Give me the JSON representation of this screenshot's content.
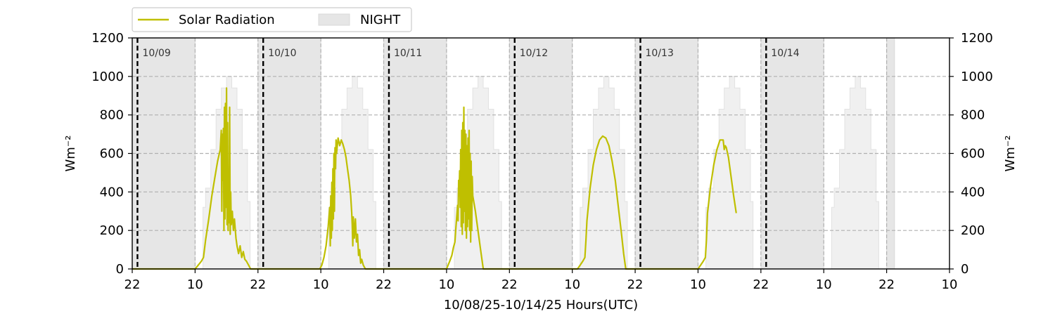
{
  "chart_data": {
    "type": "line",
    "xlabel": "10/08/25-10/14/25  Hours(UTC)",
    "ylabel_left": "Wm⁻²",
    "ylabel_right": "Wm⁻²",
    "ylim": [
      0,
      1200
    ],
    "yticks": [
      "0",
      "200",
      "400",
      "600",
      "800",
      "1000",
      "1200"
    ],
    "xlim_hours": [
      0,
      156
    ],
    "xticks": [
      {
        "hour": 0,
        "label": "22"
      },
      {
        "hour": 12,
        "label": "10"
      },
      {
        "hour": 24,
        "label": "22"
      },
      {
        "hour": 36,
        "label": "10"
      },
      {
        "hour": 48,
        "label": "22"
      },
      {
        "hour": 60,
        "label": "10"
      },
      {
        "hour": 72,
        "label": "22"
      },
      {
        "hour": 84,
        "label": "10"
      },
      {
        "hour": 96,
        "label": "22"
      },
      {
        "hour": 108,
        "label": "10"
      },
      {
        "hour": 120,
        "label": "22"
      },
      {
        "hour": 132,
        "label": "10"
      },
      {
        "hour": 144,
        "label": "22"
      },
      {
        "hour": 156,
        "label": "10"
      }
    ],
    "grid": "dashed",
    "legend_position": "top-left, above plot",
    "legend": [
      {
        "label": "Solar Radiation",
        "kind": "line",
        "color": "#bfbf00"
      },
      {
        "label": "NIGHT",
        "kind": "patch",
        "color": "#e6e6e6"
      }
    ],
    "night_periods": [
      [
        0,
        12
      ],
      [
        24,
        36
      ],
      [
        48,
        60
      ],
      [
        72,
        84
      ],
      [
        96,
        108
      ],
      [
        120,
        132
      ],
      [
        144,
        145.5
      ]
    ],
    "clear_sky_daily": {
      "day_offset_hours": [
        13.5,
        14,
        15,
        16,
        17,
        18,
        19,
        20,
        21,
        22,
        22.5
      ],
      "values": [
        320,
        420,
        620,
        830,
        940,
        1000,
        940,
        830,
        620,
        350,
        0
      ]
    },
    "day_separators": [
      {
        "hour": 1,
        "label": "10/09"
      },
      {
        "hour": 25,
        "label": "10/10"
      },
      {
        "hour": 49,
        "label": "10/11"
      },
      {
        "hour": 73,
        "label": "10/12"
      },
      {
        "hour": 97,
        "label": "10/13"
      },
      {
        "hour": 121,
        "label": "10/14"
      }
    ],
    "series": [
      {
        "name": "Solar Radiation",
        "color": "#bfbf00",
        "points": [
          [
            0,
            0
          ],
          [
            12,
            0
          ],
          [
            12.6,
            20
          ],
          [
            13.2,
            40
          ],
          [
            13.6,
            60
          ],
          [
            14,
            150
          ],
          [
            14.6,
            260
          ],
          [
            15.2,
            380
          ],
          [
            15.8,
            480
          ],
          [
            16.3,
            560
          ],
          [
            16.8,
            620
          ],
          [
            17,
            720
          ],
          [
            17.1,
            300
          ],
          [
            17.2,
            700
          ],
          [
            17.3,
            460
          ],
          [
            17.4,
            730
          ],
          [
            17.5,
            200
          ],
          [
            17.6,
            840
          ],
          [
            17.7,
            260
          ],
          [
            17.8,
            860
          ],
          [
            17.9,
            320
          ],
          [
            18,
            940
          ],
          [
            18.1,
            230
          ],
          [
            18.2,
            760
          ],
          [
            18.3,
            200
          ],
          [
            18.4,
            500
          ],
          [
            18.5,
            240
          ],
          [
            18.6,
            840
          ],
          [
            18.7,
            180
          ],
          [
            18.8,
            400
          ],
          [
            18.9,
            230
          ],
          [
            19.1,
            300
          ],
          [
            19.3,
            200
          ],
          [
            19.5,
            260
          ],
          [
            19.8,
            160
          ],
          [
            20,
            120
          ],
          [
            20.3,
            80
          ],
          [
            20.6,
            120
          ],
          [
            20.9,
            60
          ],
          [
            21.2,
            90
          ],
          [
            21.5,
            50
          ],
          [
            21.8,
            40
          ],
          [
            22.2,
            20
          ],
          [
            22.6,
            0
          ],
          [
            24,
            0
          ],
          [
            35.8,
            0
          ],
          [
            36.2,
            20
          ],
          [
            36.6,
            60
          ],
          [
            37,
            120
          ],
          [
            37.4,
            220
          ],
          [
            37.7,
            320
          ],
          [
            37.8,
            120
          ],
          [
            37.9,
            380
          ],
          [
            38,
            160
          ],
          [
            38.1,
            450
          ],
          [
            38.2,
            200
          ],
          [
            38.3,
            520
          ],
          [
            38.4,
            260
          ],
          [
            38.5,
            600
          ],
          [
            38.6,
            300
          ],
          [
            38.7,
            630
          ],
          [
            38.8,
            520
          ],
          [
            38.9,
            670
          ],
          [
            39,
            600
          ],
          [
            39.3,
            680
          ],
          [
            39.6,
            640
          ],
          [
            39.9,
            670
          ],
          [
            40.2,
            650
          ],
          [
            40.5,
            620
          ],
          [
            40.8,
            580
          ],
          [
            41.1,
            520
          ],
          [
            41.4,
            460
          ],
          [
            41.7,
            380
          ],
          [
            41.9,
            290
          ],
          [
            42,
            230
          ],
          [
            42.1,
            120
          ],
          [
            42.2,
            270
          ],
          [
            42.4,
            160
          ],
          [
            42.6,
            260
          ],
          [
            42.8,
            140
          ],
          [
            43,
            180
          ],
          [
            43.2,
            70
          ],
          [
            43.4,
            100
          ],
          [
            43.6,
            30
          ],
          [
            43.8,
            50
          ],
          [
            44.1,
            20
          ],
          [
            44.5,
            0
          ],
          [
            48,
            0
          ],
          [
            60,
            0
          ],
          [
            60.6,
            40
          ],
          [
            61,
            70
          ],
          [
            61.3,
            110
          ],
          [
            61.6,
            140
          ],
          [
            61.8,
            220
          ],
          [
            62,
            290
          ],
          [
            62.1,
            330
          ],
          [
            62.2,
            250
          ],
          [
            62.3,
            460
          ],
          [
            62.4,
            380
          ],
          [
            62.5,
            510
          ],
          [
            62.6,
            320
          ],
          [
            62.7,
            620
          ],
          [
            62.8,
            220
          ],
          [
            62.9,
            720
          ],
          [
            63,
            180
          ],
          [
            63.1,
            760
          ],
          [
            63.2,
            240
          ],
          [
            63.3,
            840
          ],
          [
            63.4,
            300
          ],
          [
            63.5,
            720
          ],
          [
            63.6,
            200
          ],
          [
            63.7,
            700
          ],
          [
            63.8,
            160
          ],
          [
            63.9,
            640
          ],
          [
            64,
            220
          ],
          [
            64.1,
            680
          ],
          [
            64.2,
            260
          ],
          [
            64.3,
            720
          ],
          [
            64.4,
            200
          ],
          [
            64.5,
            600
          ],
          [
            64.6,
            140
          ],
          [
            64.7,
            560
          ],
          [
            64.8,
            200
          ],
          [
            64.9,
            480
          ],
          [
            65,
            380
          ],
          [
            65.5,
            300
          ],
          [
            66,
            200
          ],
          [
            66.5,
            100
          ],
          [
            67,
            0
          ],
          [
            72,
            0
          ],
          [
            85,
            0
          ],
          [
            85.5,
            20
          ],
          [
            86,
            40
          ],
          [
            86.4,
            60
          ],
          [
            86.6,
            150
          ],
          [
            86.8,
            250
          ],
          [
            87.4,
            420
          ],
          [
            88,
            540
          ],
          [
            88.6,
            620
          ],
          [
            89.2,
            670
          ],
          [
            89.8,
            690
          ],
          [
            90.4,
            680
          ],
          [
            91,
            640
          ],
          [
            91.6,
            560
          ],
          [
            92.2,
            460
          ],
          [
            92.8,
            320
          ],
          [
            93.4,
            180
          ],
          [
            93.8,
            80
          ],
          [
            94.2,
            0
          ],
          [
            96,
            0
          ],
          [
            108,
            0
          ],
          [
            108.5,
            20
          ],
          [
            109,
            40
          ],
          [
            109.4,
            60
          ],
          [
            109.6,
            150
          ],
          [
            109.8,
            290
          ],
          [
            110.4,
            430
          ],
          [
            111,
            540
          ],
          [
            111.6,
            620
          ],
          [
            112.2,
            670
          ],
          [
            112.8,
            670
          ],
          [
            113,
            620
          ],
          [
            113.2,
            640
          ],
          [
            113.4,
            630
          ],
          [
            113.8,
            580
          ],
          [
            114.3,
            480
          ],
          [
            114.8,
            380
          ],
          [
            115.3,
            290
          ]
        ]
      }
    ]
  }
}
